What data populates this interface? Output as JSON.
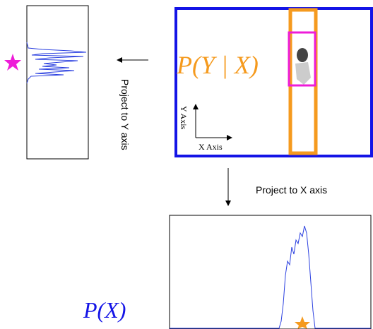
{
  "labels": {
    "project_y": "Project to Y axis",
    "project_x": "Project to X axis",
    "conditional": "P(Y | X)",
    "marginal": "P(X)",
    "y_axis": "Y Axis",
    "x_axis": "X Axis"
  }
}
